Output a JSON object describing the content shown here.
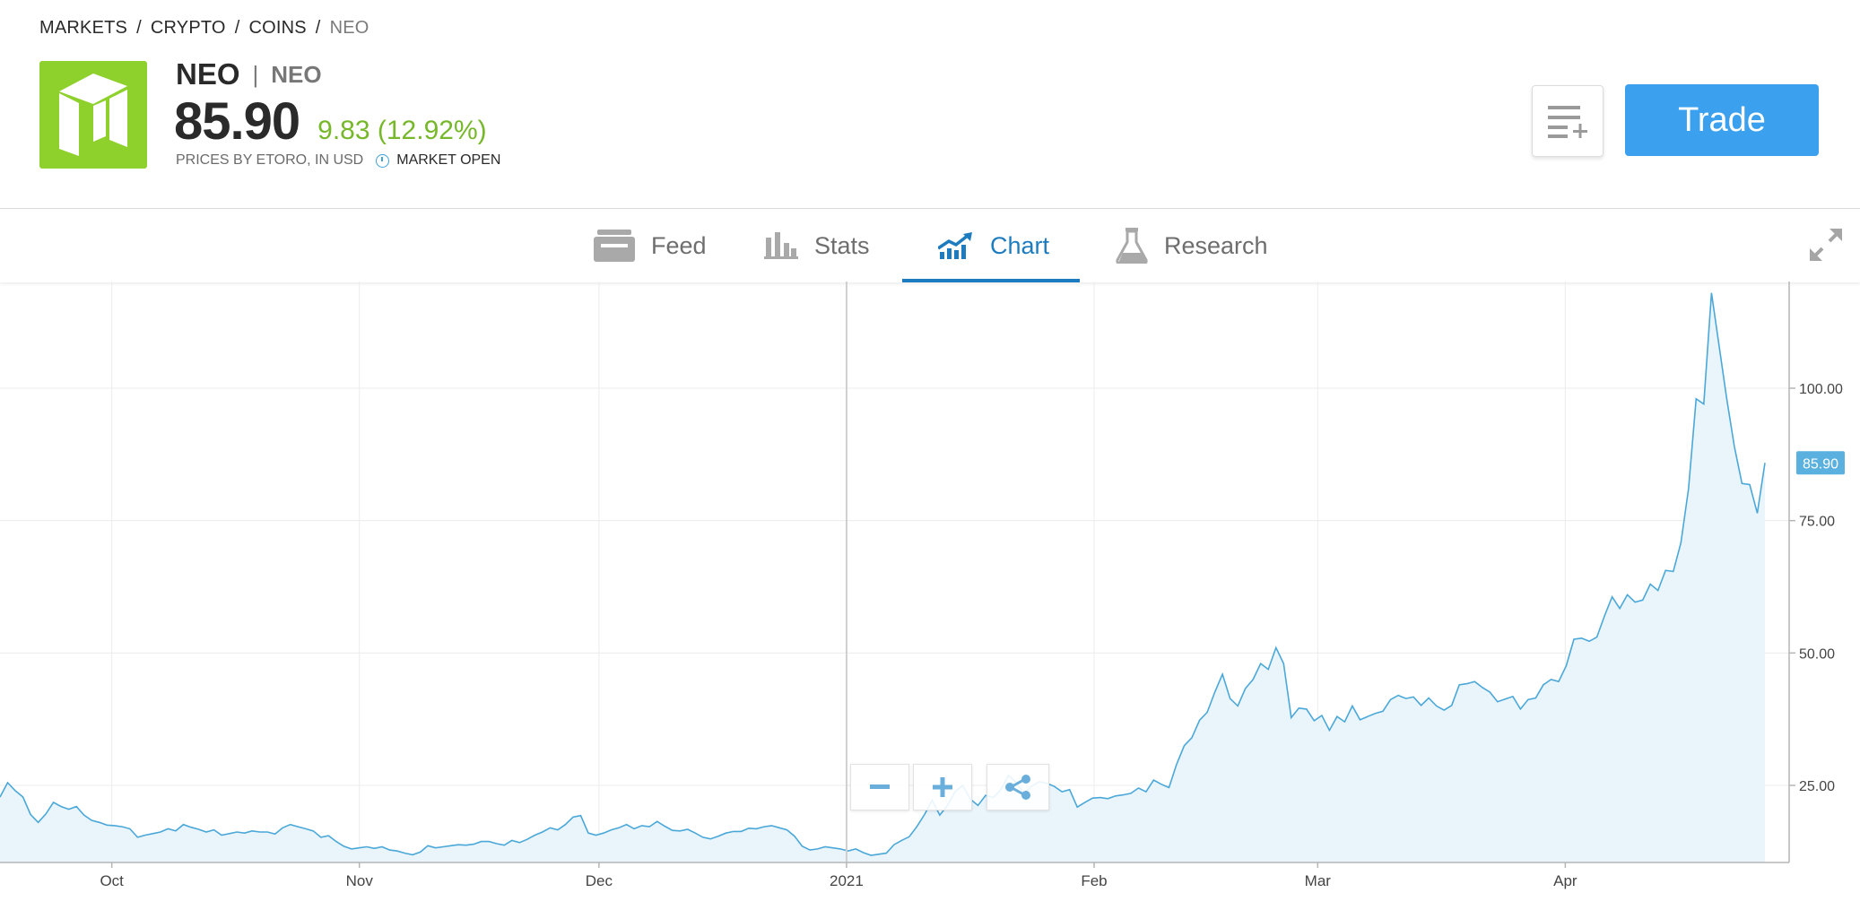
{
  "breadcrumb": {
    "items": [
      "MARKETS",
      "CRYPTO",
      "COINS"
    ],
    "current": "NEO",
    "separator": "/"
  },
  "instrument": {
    "name": "NEO",
    "symbol": "NEO",
    "price": "85.90",
    "change": "9.83 (12.92%)",
    "source": "PRICES BY ETORO, IN USD",
    "market_status": "MARKET OPEN",
    "logo_color": "#8ed12c",
    "change_color": "#76b82a"
  },
  "actions": {
    "trade_label": "Trade",
    "watchlist_icon": "add-to-list-icon"
  },
  "tabs": [
    {
      "label": "Feed",
      "icon": "feed-icon"
    },
    {
      "label": "Stats",
      "icon": "bar-chart-icon"
    },
    {
      "label": "Chart",
      "icon": "trend-chart-icon",
      "active": true
    },
    {
      "label": "Research",
      "icon": "flask-icon"
    }
  ],
  "accent_color": "#1c7cbf",
  "trade_color": "#3ba1ef",
  "chart_data": {
    "type": "area",
    "x_tick_labels": [
      "Oct",
      "Nov",
      "Dec",
      "2021",
      "Feb",
      "Mar",
      "Apr"
    ],
    "y_tick_labels": [
      "25.00",
      "50.00",
      "75.00",
      "100.00"
    ],
    "ylim": [
      10,
      120
    ],
    "grid": true,
    "last_price_label": "85.90",
    "line_color": "#4aa8d8",
    "fill_color": "#eaf4fb",
    "series": [
      {
        "x_start": "2020-09-17",
        "x_end": "2021-04-26",
        "values": [
          22.8,
          25.5,
          24.0,
          22.8,
          19.5,
          18.0,
          19.6,
          21.8,
          21.0,
          20.5,
          21.0,
          19.4,
          18.4,
          18.0,
          17.5,
          17.4,
          17.2,
          16.8,
          15.2,
          15.6,
          15.9,
          16.2,
          16.8,
          16.4,
          17.6,
          17.1,
          16.7,
          16.2,
          16.6,
          15.6,
          15.9,
          16.2,
          16.0,
          16.4,
          16.2,
          16.2,
          15.8,
          17.0,
          17.6,
          17.2,
          16.8,
          16.4,
          15.2,
          15.5,
          14.4,
          13.5,
          13.0,
          13.2,
          13.4,
          13.1,
          13.4,
          12.8,
          12.6,
          12.2,
          11.9,
          12.4,
          13.6,
          13.2,
          13.4,
          13.6,
          13.8,
          13.7,
          13.9,
          14.4,
          14.4,
          14.0,
          13.7,
          14.6,
          14.2,
          14.8,
          15.6,
          16.2,
          17.0,
          16.6,
          17.6,
          19.0,
          19.3,
          16.0,
          15.6,
          16.0,
          16.6,
          17.0,
          17.6,
          16.8,
          17.4,
          17.2,
          18.2,
          17.3,
          16.5,
          16.4,
          16.7,
          16.0,
          15.2,
          14.9,
          15.4,
          16.0,
          16.3,
          16.3,
          16.9,
          16.8,
          17.2,
          17.4,
          17.0,
          16.6,
          15.4,
          13.5,
          12.8,
          13.0,
          13.4,
          13.2,
          13.0,
          12.6,
          13.0,
          12.3,
          11.8,
          12.0,
          12.2,
          13.8,
          14.6,
          15.3,
          17.2,
          19.5,
          22.2,
          19.4,
          21.2,
          23.8,
          25.0,
          22.4,
          21.2,
          23.1,
          22.7,
          24.2,
          26.9,
          25.6,
          23.5,
          24.8,
          25.7,
          25.4,
          24.8,
          23.8,
          24.2,
          20.9,
          21.8,
          22.6,
          22.7,
          22.5,
          23.0,
          23.2,
          23.5,
          24.5,
          23.8,
          26.0,
          25.2,
          24.6,
          29.0,
          32.5,
          34.0,
          37.3,
          38.8,
          42.6,
          46.0,
          41.4,
          40.0,
          43.3,
          45.0,
          48.0,
          46.9,
          51.0,
          48.0,
          37.8,
          39.6,
          39.4,
          37.2,
          38.2,
          35.4,
          38.0,
          37.0,
          40.0,
          37.4,
          38.0,
          38.6,
          39.0,
          41.2,
          42.0,
          41.4,
          41.7,
          40.1,
          41.5,
          40.0,
          39.2,
          40.1,
          44.0,
          44.2,
          44.6,
          43.5,
          42.6,
          40.8,
          41.3,
          41.8,
          39.4,
          41.2,
          41.5,
          44.0,
          45.0,
          44.6,
          47.6,
          52.6,
          52.8,
          52.2,
          53.0,
          57.0,
          60.6,
          58.4,
          61.0,
          59.6,
          60.0,
          63.0,
          61.8,
          65.6,
          65.4,
          70.8,
          81.0,
          98.0,
          97.0,
          118.0,
          108.0,
          98.0,
          89.0,
          82.0,
          81.8,
          76.4,
          85.9
        ]
      }
    ]
  }
}
